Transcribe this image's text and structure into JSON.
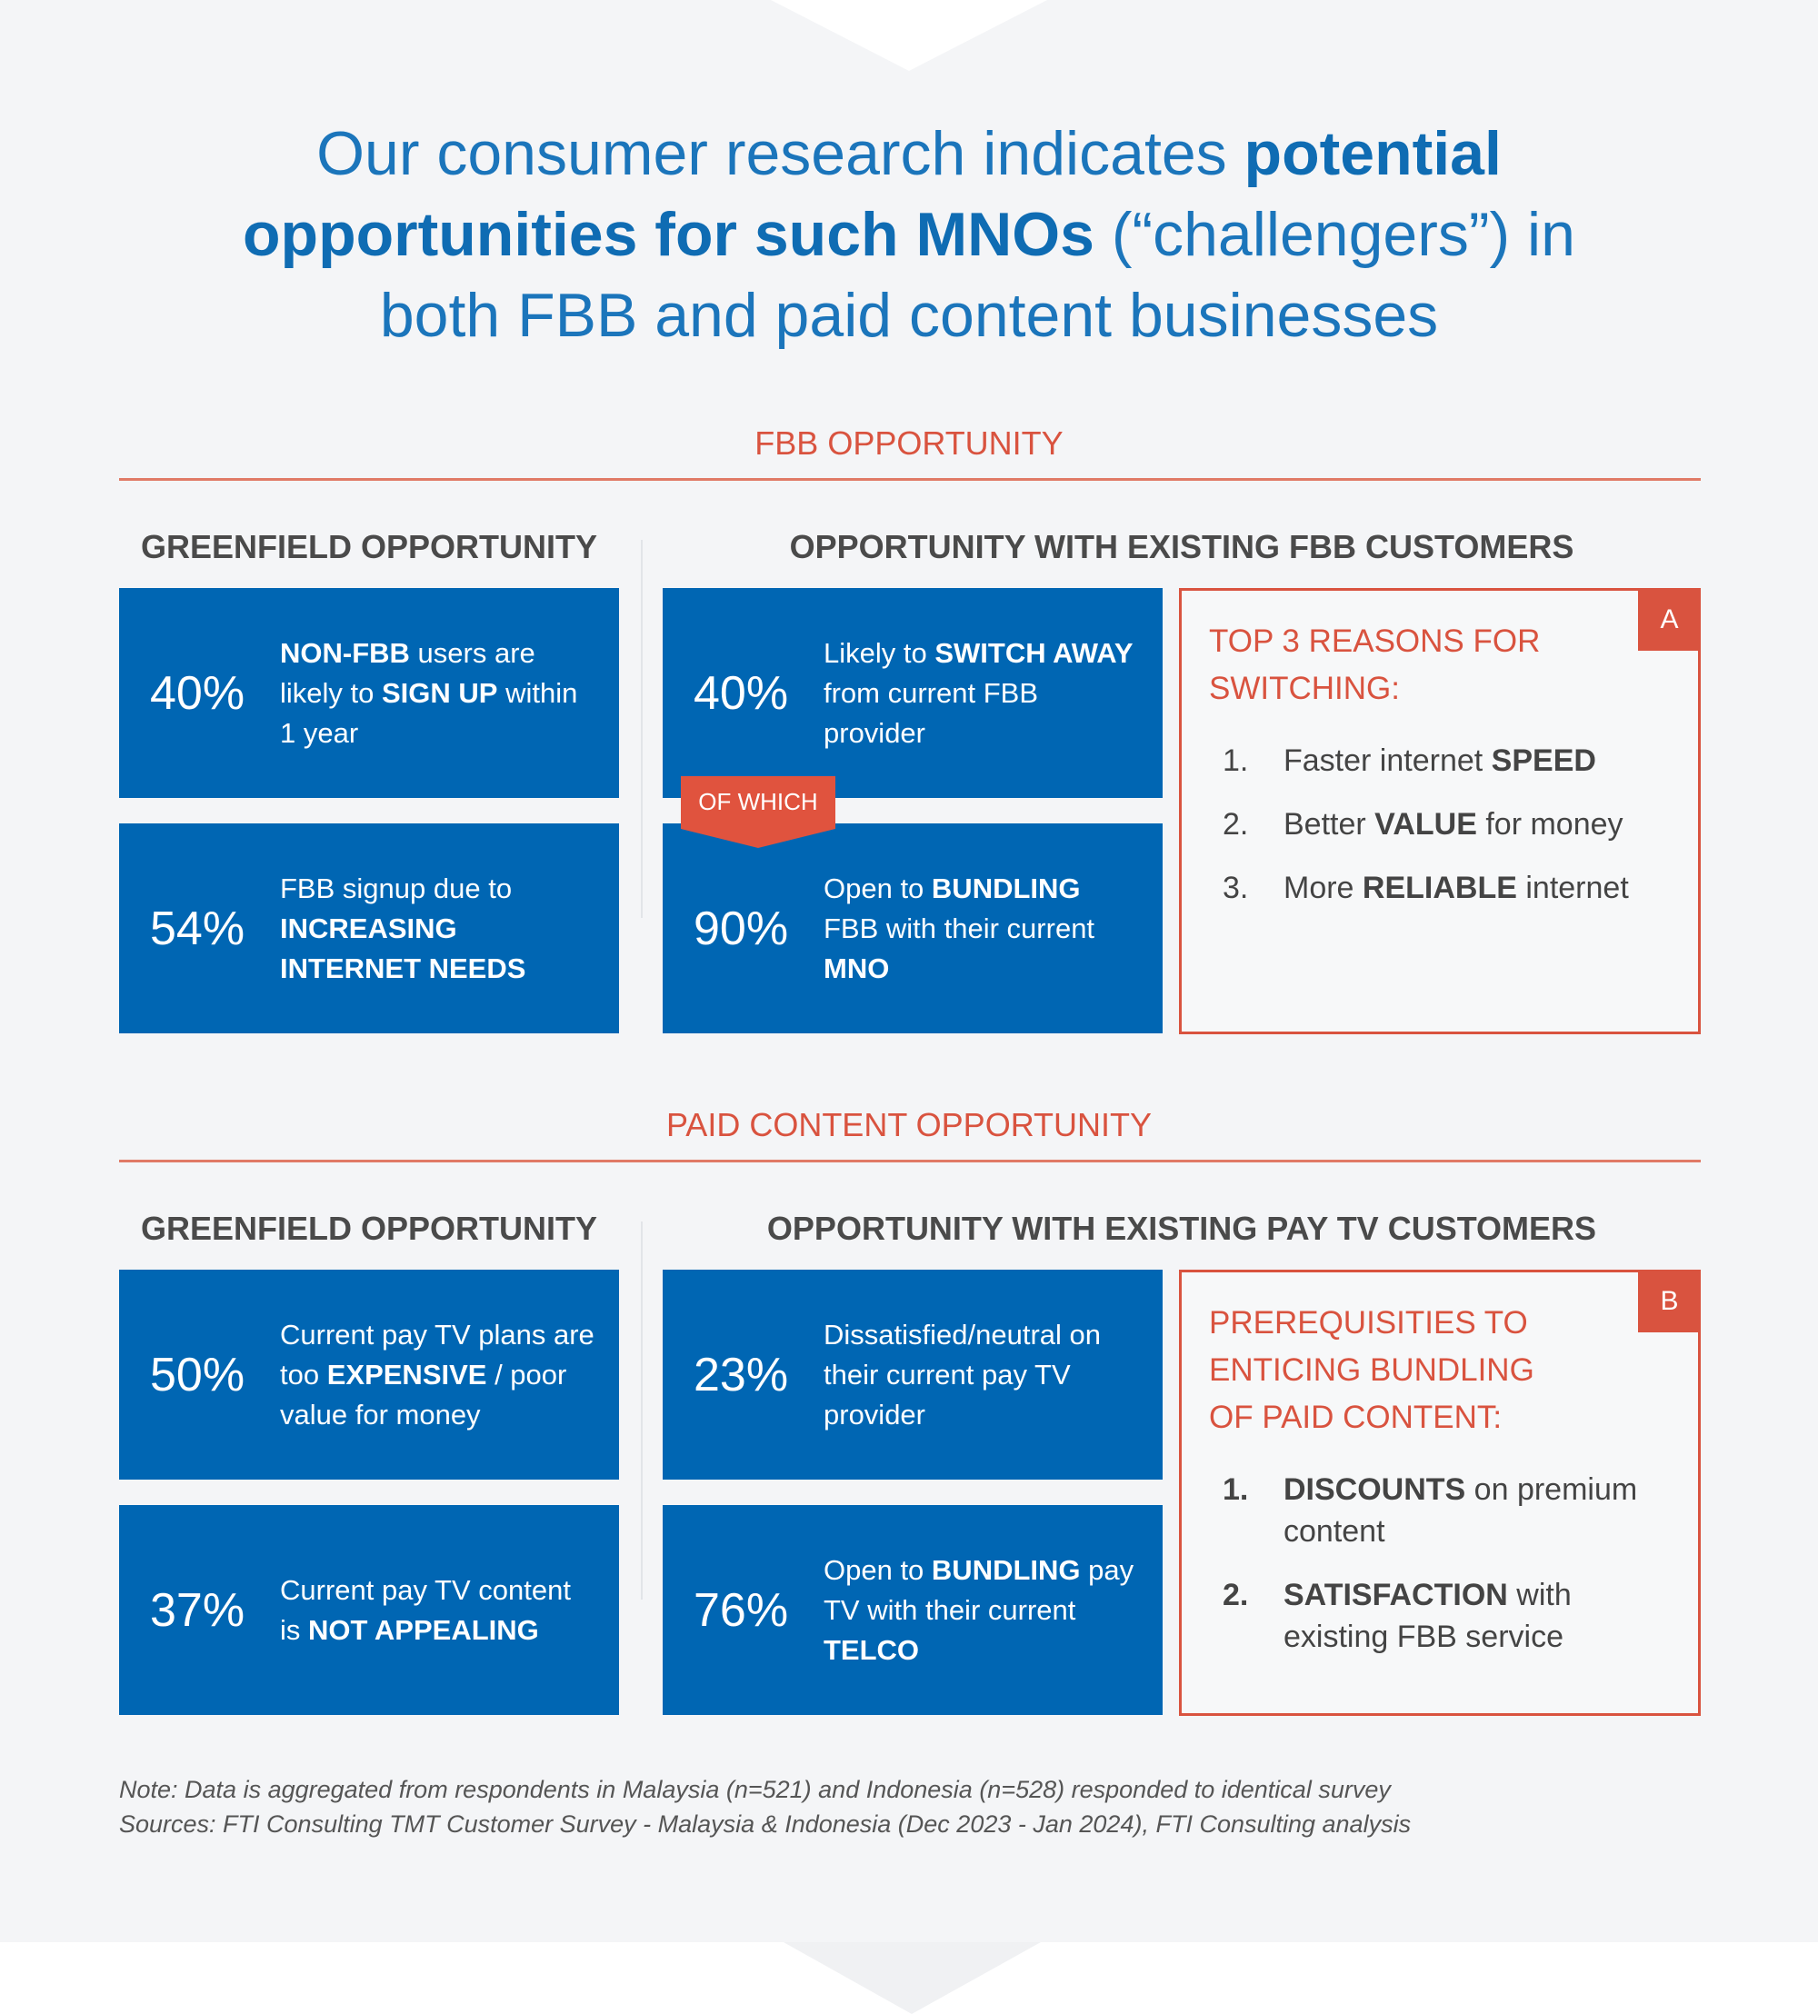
{
  "title": [
    {
      "t": "Our consumer research indicates "
    },
    {
      "b": "potential opportunities for such MNOs"
    },
    {
      "t": " (“challengers”) in both FBB and paid content businesses"
    }
  ],
  "sections": [
    {
      "heading": "FBB OPPORTUNITY",
      "left": {
        "heading": "GREENFIELD OPPORTUNITY",
        "cards": [
          {
            "stat": "40%",
            "text": [
              {
                "b": "NON-FBB"
              },
              {
                "t": " users are likely to "
              },
              {
                "b": "SIGN UP"
              },
              {
                "t": " within 1 year"
              }
            ]
          },
          {
            "stat": "54%",
            "text": [
              {
                "t": "FBB signup due to "
              },
              {
                "b": "INCREASING INTERNET NEEDS"
              }
            ]
          }
        ]
      },
      "right": {
        "heading": "OPPORTUNITY WITH EXISTING FBB CUSTOMERS",
        "cards": [
          {
            "stat": "40%",
            "text": [
              {
                "t": "Likely to "
              },
              {
                "b": "SWITCH AWAY"
              },
              {
                "t": " from current FBB provider"
              }
            ]
          },
          {
            "stat": "90%",
            "text": [
              {
                "t": "Open to "
              },
              {
                "b": "BUNDLING"
              },
              {
                "t": " FBB with their current "
              },
              {
                "b": "MNO"
              }
            ]
          }
        ],
        "connector": "OF WHICH"
      },
      "box": {
        "badge": "A",
        "heading": "TOP 3 REASONS FOR SWITCHING:",
        "items": [
          {
            "number": "1.",
            "text": [
              {
                "t": "Faster internet "
              },
              {
                "b": "SPEED"
              }
            ]
          },
          {
            "number": "2.",
            "text": [
              {
                "t": "Better "
              },
              {
                "b": "VALUE"
              },
              {
                "t": " for money"
              }
            ]
          },
          {
            "number": "3.",
            "text": [
              {
                "t": "More "
              },
              {
                "b": "RELIABLE"
              },
              {
                "t": " internet"
              }
            ]
          }
        ]
      }
    },
    {
      "heading": "PAID CONTENT OPPORTUNITY",
      "left": {
        "heading": "GREENFIELD OPPORTUNITY",
        "cards": [
          {
            "stat": "50%",
            "text": [
              {
                "t": "Current pay TV plans are too "
              },
              {
                "b": "EXPENSIVE"
              },
              {
                "t": " / poor value for money"
              }
            ]
          },
          {
            "stat": "37%",
            "text": [
              {
                "t": "Current pay TV content is "
              },
              {
                "b": "NOT APPEALING"
              }
            ]
          }
        ]
      },
      "right": {
        "heading": "OPPORTUNITY WITH EXISTING PAY TV CUSTOMERS",
        "cards": [
          {
            "stat": "23%",
            "text": [
              {
                "t": "Dissatisfied/neutral on their current pay TV provider"
              }
            ]
          },
          {
            "stat": "76%",
            "text": [
              {
                "t": "Open to "
              },
              {
                "b": "BUNDLING"
              },
              {
                "t": " pay TV with their current "
              },
              {
                "b": "TELCO"
              }
            ]
          }
        ]
      },
      "box": {
        "badge": "B",
        "heading": "PREREQUISITIES TO ENTICING BUNDLING OF PAID CONTENT:",
        "items": [
          {
            "number": "1.",
            "text": [
              {
                "b": "DISCOUNTS"
              },
              {
                "t": " on premium content"
              }
            ]
          },
          {
            "number": "2.",
            "text": [
              {
                "b": "SATISFACTION"
              },
              {
                "t": " with existing FBB service"
              }
            ]
          }
        ]
      }
    }
  ],
  "notes": [
    "Note: Data is aggregated from respondents in Malaysia (n=521) and Indonesia (n=528) responded to identical survey",
    "Sources: FTI Consulting TMT Customer Survey - Malaysia & Indonesia (Dec 2023 - Jan 2024), FTI Consulting analysis"
  ]
}
